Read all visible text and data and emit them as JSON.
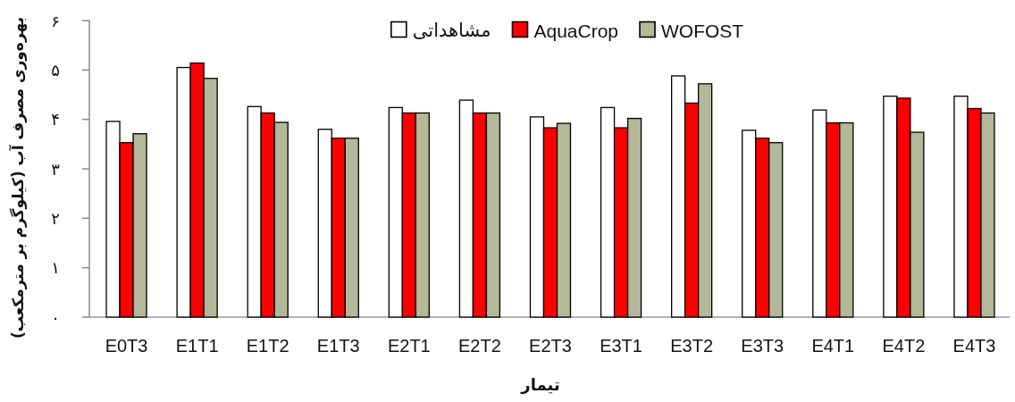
{
  "chart_data": {
    "type": "bar",
    "xlabel": "تیمار",
    "ylabel": "بهره‌وری مصرف آب (کیلوگرم بر مترمکعب)",
    "categories": [
      "E0T3",
      "E1T1",
      "E1T2",
      "E1T3",
      "E2T1",
      "E2T2",
      "E2T3",
      "E3T1",
      "E3T2",
      "E3T3",
      "E4T1",
      "E4T2",
      "E4T3"
    ],
    "series": [
      {
        "name": "مشاهداتی",
        "color": "#ffffff",
        "values": [
          3.96,
          5.05,
          4.26,
          3.8,
          4.24,
          4.39,
          4.05,
          4.24,
          4.88,
          3.78,
          4.19,
          4.47,
          4.47
        ]
      },
      {
        "name": "AquaCrop",
        "color": "#ff0000",
        "values": [
          3.53,
          5.14,
          4.13,
          3.62,
          4.13,
          4.13,
          3.83,
          3.83,
          4.33,
          3.62,
          3.93,
          4.43,
          4.22
        ]
      },
      {
        "name": "WOFOST",
        "color": "#b3b898",
        "values": [
          3.71,
          4.83,
          3.94,
          3.62,
          4.13,
          4.13,
          3.92,
          4.02,
          4.72,
          3.53,
          3.93,
          3.74,
          4.13
        ]
      }
    ],
    "ylim": [
      0,
      6
    ],
    "yticks": [
      {
        "value": 0,
        "label": "۰"
      },
      {
        "value": 1,
        "label": "۱"
      },
      {
        "value": 2,
        "label": "۲"
      },
      {
        "value": 3,
        "label": "۳"
      },
      {
        "value": 4,
        "label": "۴"
      },
      {
        "value": 5,
        "label": "۵"
      },
      {
        "value": 6,
        "label": "۶"
      }
    ],
    "legend": "top"
  }
}
